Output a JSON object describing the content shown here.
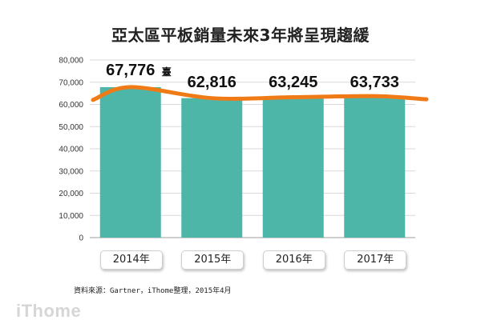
{
  "chart_data": {
    "type": "bar",
    "title": "亞太區平板銷量未來3年將呈現趨緩",
    "categories": [
      "2014年",
      "2015年",
      "2016年",
      "2017年"
    ],
    "values": [
      67776,
      62816,
      63245,
      63733
    ],
    "data_labels": [
      "67,776",
      "62,816",
      "63,245",
      "63,733"
    ],
    "unit": "臺",
    "ylim": [
      0,
      80000
    ],
    "yticks": [
      0,
      10000,
      20000,
      30000,
      40000,
      50000,
      60000,
      70000,
      80000
    ],
    "ytick_labels": [
      "0",
      "10,000",
      "20,000",
      "30,000",
      "40,000",
      "50,000",
      "60,000",
      "70,000",
      "80,000"
    ],
    "grid": true,
    "bar_color": "#4db6a9",
    "trend_color": "#f07b16",
    "xlabel": "",
    "ylabel": ""
  },
  "source_note": "資料來源：Gartner，iThome整理，2015年4月",
  "brand": "iThome"
}
